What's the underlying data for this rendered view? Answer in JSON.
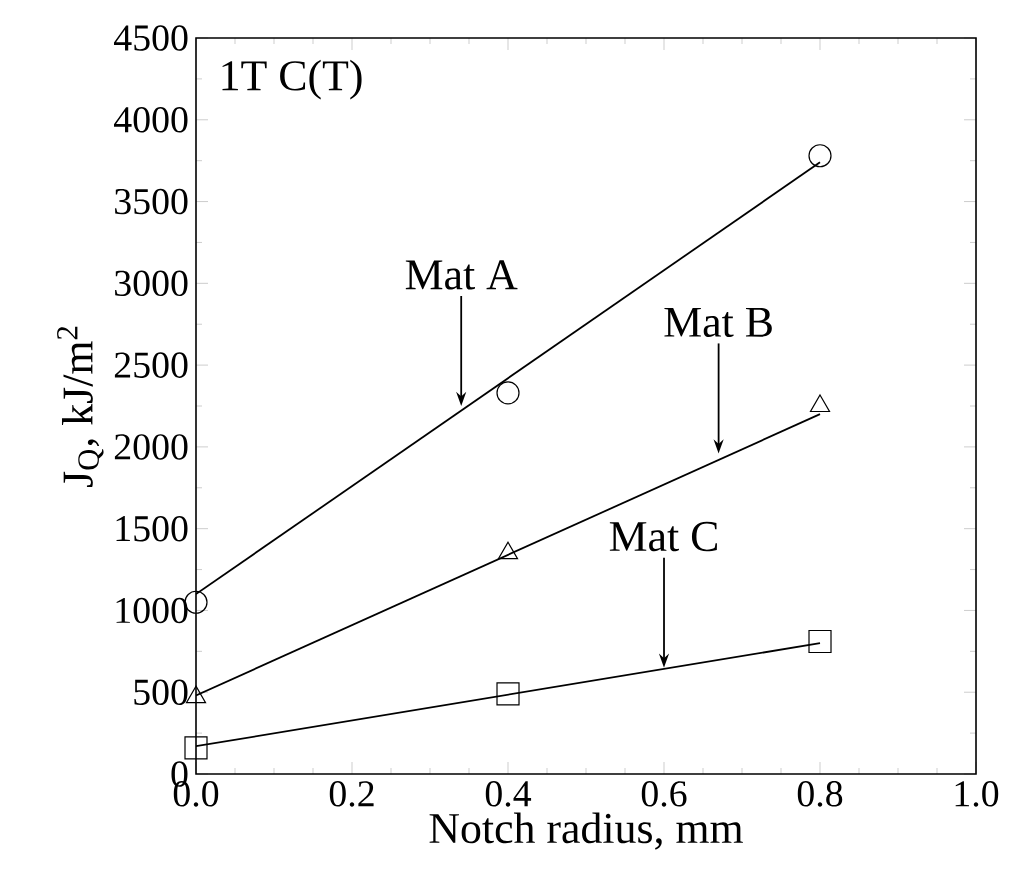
{
  "chart_data": {
    "type": "scatter",
    "xlabel": "Notch radius, mm",
    "ylabel": "J$_{Q}$, kJ/m$^{2}$",
    "xlim": [
      0,
      1.0
    ],
    "ylim": [
      0,
      4500
    ],
    "xticks": [
      {
        "value": 0,
        "label": "0.0"
      },
      0.2,
      0.4,
      0.6,
      0.8,
      {
        "value": 1.0,
        "label": "1.0"
      }
    ],
    "yticks": [
      0,
      500,
      1000,
      1500,
      2000,
      2500,
      3000,
      3500,
      4000,
      4500
    ],
    "grid": false,
    "series": [
      {
        "type": "line",
        "marker": "none",
        "color": "#000000",
        "x": [
          0,
          0.8
        ],
        "values": [
          1100,
          3740
        ]
      },
      {
        "type": "line",
        "marker": "none",
        "color": "#000000",
        "x": [
          0,
          0.8
        ],
        "values": [
          480,
          2200
        ]
      },
      {
        "type": "line",
        "marker": "none",
        "color": "#000000",
        "x": [
          0,
          0.8
        ],
        "values": [
          170,
          800
        ]
      },
      {
        "marker": "circle",
        "color": "#000000",
        "x": [
          0,
          0.4,
          0.8
        ],
        "values": [
          1050,
          2330,
          3780
        ]
      },
      {
        "marker": "triangle",
        "color": "#000000",
        "x": [
          0,
          0.4,
          0.8
        ],
        "values": [
          470,
          1350,
          2250
        ]
      },
      {
        "marker": "square",
        "color": "#000000",
        "x": [
          0,
          0.4,
          0.8
        ],
        "values": [
          160,
          490,
          810
        ]
      }
    ],
    "annotations": [
      "1T C(T)",
      {
        "text": "Mat A",
        "x": 0.34,
        "y": 2250
      },
      {
        "text": "Mat B",
        "x": 0.67,
        "y": 1960
      },
      {
        "text": "Mat C",
        "x": 0.6,
        "y": 650
      }
    ]
  }
}
